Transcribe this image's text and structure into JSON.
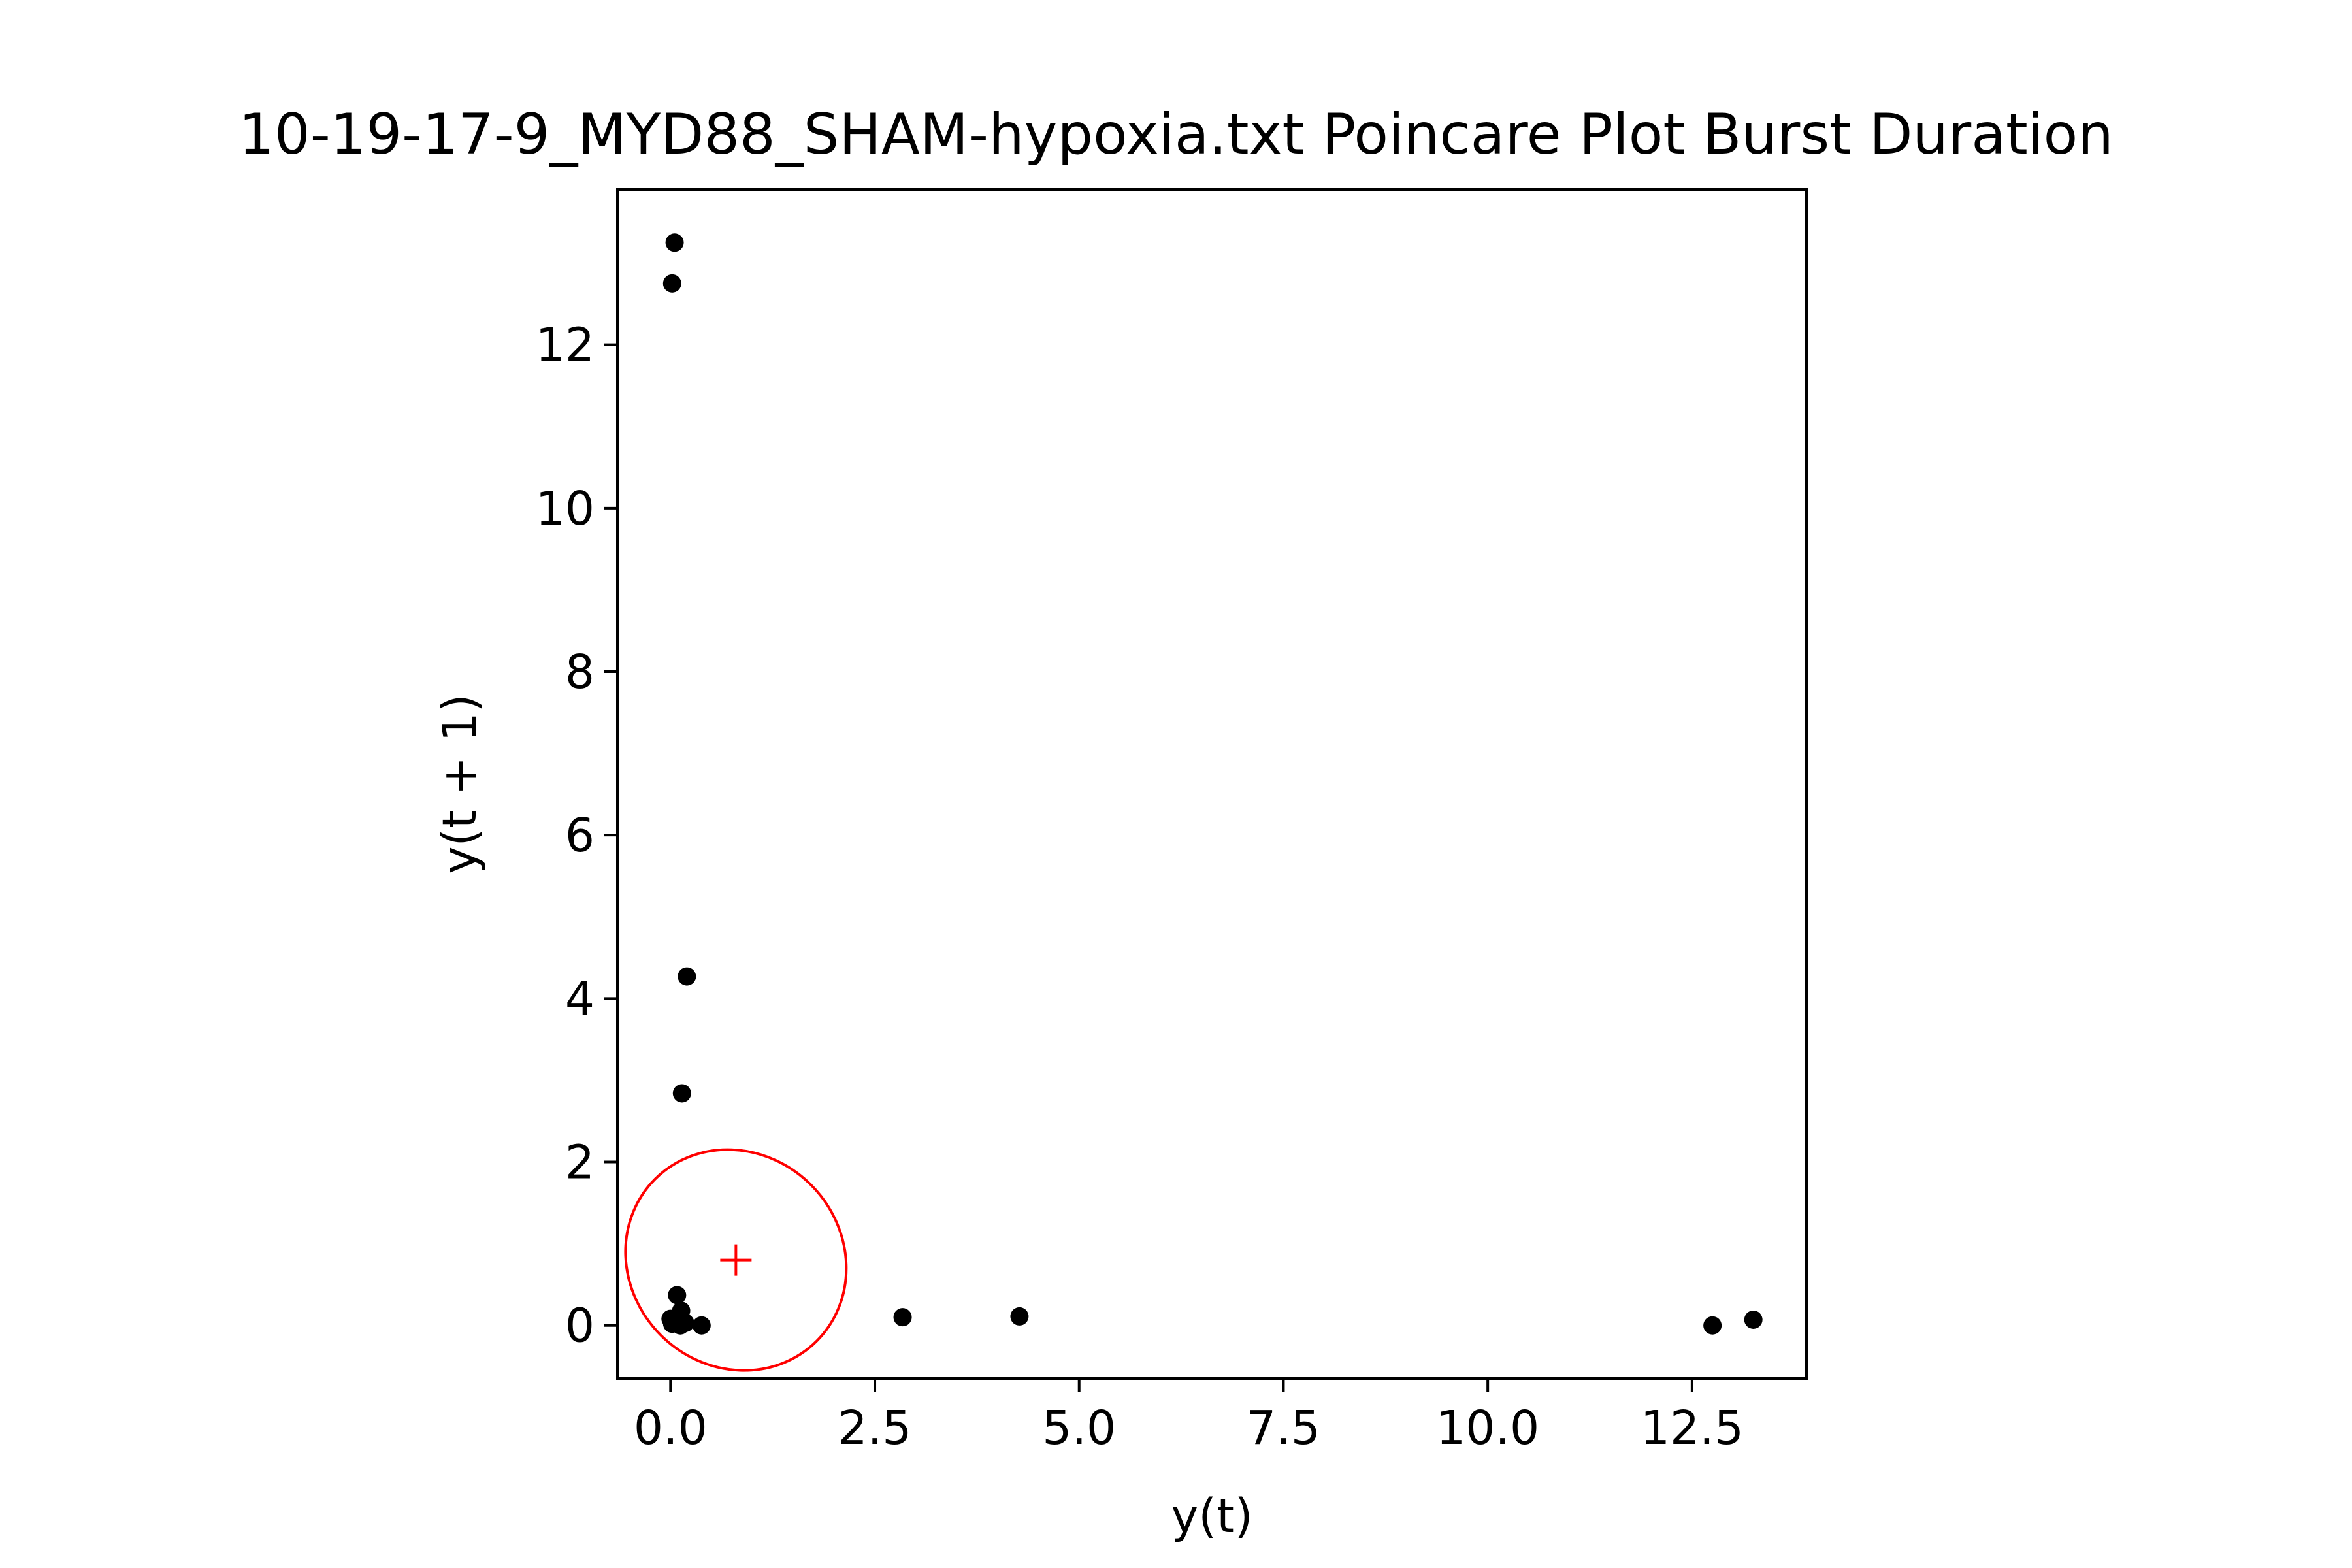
{
  "chart_data": {
    "type": "scatter",
    "title": "10-19-17-9_MYD88_SHAM-hypoxia.txt Poincare Plot Burst Duration",
    "xlabel": "y(t)",
    "ylabel": "y(t + 1)",
    "xlim": [
      -0.65,
      13.9
    ],
    "ylim": [
      -0.65,
      13.9
    ],
    "xticks": [
      0.0,
      2.5,
      5.0,
      7.5,
      10.0,
      12.5
    ],
    "xtick_labels": [
      "0.0",
      "2.5",
      "5.0",
      "7.5",
      "10.0",
      "12.5"
    ],
    "yticks": [
      0,
      2,
      4,
      6,
      8,
      10,
      12
    ],
    "ytick_labels": [
      "0",
      "2",
      "4",
      "6",
      "8",
      "10",
      "12"
    ],
    "grid": false,
    "legend": "none",
    "point_color": "#000000",
    "points": [
      {
        "x": 0.05,
        "y": 13.25
      },
      {
        "x": 0.02,
        "y": 12.75
      },
      {
        "x": 0.2,
        "y": 4.27
      },
      {
        "x": 0.14,
        "y": 2.84
      },
      {
        "x": 0.08,
        "y": 0.37
      },
      {
        "x": 0.13,
        "y": 0.18
      },
      {
        "x": 0.0,
        "y": 0.08
      },
      {
        "x": 0.02,
        "y": 0.02
      },
      {
        "x": 0.05,
        "y": 0.05
      },
      {
        "x": 0.1,
        "y": 0.1
      },
      {
        "x": 0.12,
        "y": 0.0
      },
      {
        "x": 0.18,
        "y": 0.03
      },
      {
        "x": 0.38,
        "y": 0.0
      },
      {
        "x": 2.84,
        "y": 0.1
      },
      {
        "x": 4.27,
        "y": 0.11
      },
      {
        "x": 12.75,
        "y": 0.0
      },
      {
        "x": 13.25,
        "y": 0.07
      }
    ],
    "centroid": {
      "x": 0.8,
      "y": 0.8,
      "color": "#ff0000"
    },
    "ellipse": {
      "cx": 0.8,
      "cy": 0.8,
      "rx": 1.3,
      "ry": 1.4,
      "angle": -45,
      "color": "#ff0000"
    }
  }
}
